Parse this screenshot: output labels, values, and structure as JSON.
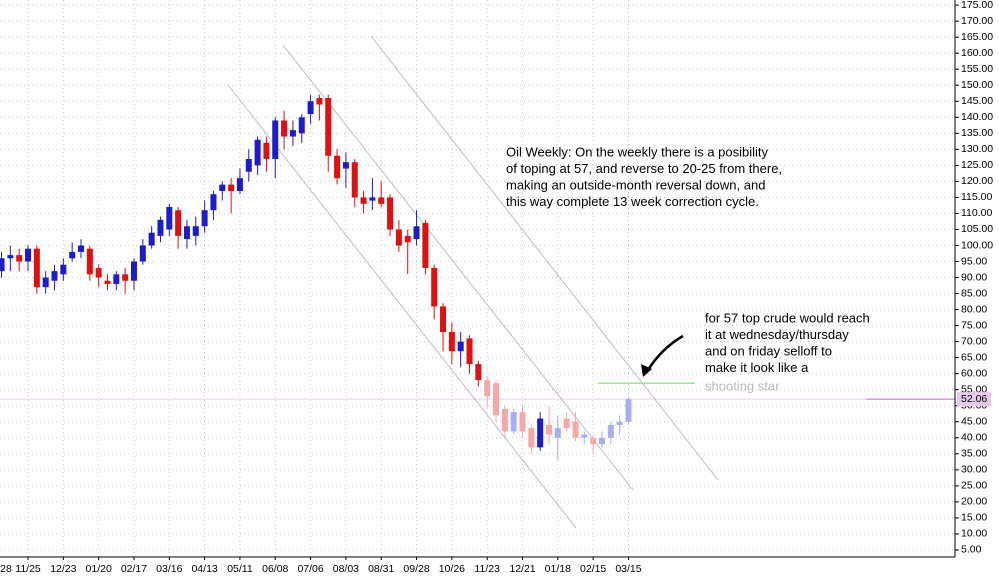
{
  "chart_data": {
    "type": "candlestick",
    "categories": [
      "28",
      null,
      null,
      null,
      "11/25",
      null,
      null,
      null,
      "12/23",
      null,
      null,
      null,
      "01/20",
      null,
      null,
      null,
      "02/17",
      null,
      null,
      null,
      "03/16",
      null,
      null,
      null,
      "04/13",
      null,
      null,
      null,
      "05/11",
      null,
      null,
      null,
      "06/08",
      null,
      null,
      null,
      "07/06",
      null,
      null,
      null,
      "08/03",
      null,
      null,
      null,
      "08/31",
      null,
      null,
      null,
      "09/28",
      null,
      null,
      null,
      "10/26",
      null,
      null,
      null,
      "11/23",
      null,
      null,
      null,
      "12/21",
      null,
      null,
      null,
      "01/18",
      null,
      null,
      null,
      "02/15",
      null,
      null,
      null,
      "03/15"
    ],
    "open": [
      null,
      92,
      96,
      97,
      95,
      99,
      87,
      89,
      91,
      96,
      98,
      99,
      93,
      89,
      88,
      91,
      89,
      95,
      100,
      103,
      105,
      111,
      102,
      103,
      106,
      111,
      117,
      119,
      117,
      123,
      125,
      132,
      127,
      139,
      134,
      135,
      141,
      146,
      146,
      128,
      124,
      126,
      115,
      114,
      115,
      115,
      105,
      103,
      102,
      107,
      93,
      81,
      73,
      67,
      71,
      63,
      58,
      57,
      49,
      42,
      48,
      43,
      37,
      44,
      40,
      46,
      45,
      40,
      40,
      38,
      40,
      44,
      45
    ],
    "high": [
      null,
      98,
      100,
      99,
      100,
      100,
      92,
      94,
      96,
      101,
      102,
      100,
      94,
      91,
      92,
      93,
      96,
      102,
      106,
      109,
      113,
      112,
      108,
      109,
      114,
      117,
      120,
      121,
      124,
      130,
      134,
      134,
      140,
      142,
      139,
      141,
      147,
      147,
      147,
      130,
      129,
      127,
      117,
      121,
      120,
      116,
      108,
      105,
      111,
      108,
      94,
      82,
      76,
      73,
      72,
      64,
      59,
      58,
      50,
      49,
      50,
      44,
      48,
      50,
      47,
      48,
      48,
      42,
      41,
      42,
      45,
      47,
      52.5
    ],
    "low": [
      null,
      90,
      92,
      92,
      92,
      85,
      85,
      86,
      89,
      95,
      96,
      89,
      87,
      86,
      86,
      85,
      86,
      94,
      99,
      101,
      103,
      99,
      99,
      100,
      104,
      108,
      114,
      110,
      116,
      120,
      122,
      123,
      121,
      130,
      131,
      132,
      138,
      139,
      123,
      119,
      118,
      112,
      110,
      111,
      112,
      103,
      98,
      91,
      100,
      91,
      77,
      67,
      63,
      62,
      60,
      56,
      49,
      45,
      40,
      41,
      40,
      35,
      36,
      38,
      33,
      42,
      39,
      38,
      35,
      37,
      38,
      41,
      44
    ],
    "close": [
      null,
      96,
      97,
      95,
      99,
      87,
      90,
      92,
      94,
      98,
      100,
      91,
      90,
      88,
      91,
      89,
      95,
      100,
      104,
      108,
      112,
      103,
      106,
      106,
      111,
      116,
      119,
      117,
      121,
      127,
      133,
      127,
      139,
      134,
      136,
      140,
      145,
      144,
      128,
      121,
      126,
      115,
      113,
      115,
      113,
      105,
      100,
      101,
      106,
      93,
      81,
      73,
      67,
      70,
      63,
      58,
      53,
      47,
      42,
      48,
      42,
      37,
      46,
      41,
      43,
      43,
      40,
      41,
      38,
      40,
      44,
      45,
      52.06
    ],
    "colors": [
      null,
      "#1c1ccc",
      "#1c1ccc",
      "#e01010",
      "#1c1ccc",
      "#e01010",
      "#1c1ccc",
      "#1c1ccc",
      "#1c1ccc",
      "#1c1ccc",
      "#1c1ccc",
      "#e01010",
      "#e01010",
      "#e01010",
      "#1c1ccc",
      "#e01010",
      "#1c1ccc",
      "#1c1ccc",
      "#1c1ccc",
      "#1c1ccc",
      "#1c1ccc",
      "#e01010",
      "#1c1ccc",
      "#1c1ccc",
      "#1c1ccc",
      "#1c1ccc",
      "#1c1ccc",
      "#e01010",
      "#1c1ccc",
      "#1c1ccc",
      "#1c1ccc",
      "#e01010",
      "#1c1ccc",
      "#e01010",
      "#1c1ccc",
      "#1c1ccc",
      "#1c1ccc",
      "#e01010",
      "#e01010",
      "#e01010",
      "#1c1ccc",
      "#e01010",
      "#e01010",
      "#1c1ccc",
      "#e01010",
      "#e01010",
      "#e01010",
      "#e01010",
      "#1c1ccc",
      "#e01010",
      "#e01010",
      "#e01010",
      "#e01010",
      "#1c1ccc",
      "#e01010",
      "#e01010",
      "#f4a8a8",
      "#f4a8a8",
      "#f4a8a8",
      "#a8aef0",
      "#f4a8a8",
      "#f4a8a8",
      "#1c1ccc",
      "#f4a8a8",
      "#a8aef0",
      "#f4a8a8",
      "#f4a8a8",
      "#a8aef0",
      "#f4a8a8",
      "#a8aef0",
      "#a8aef0",
      "#a8aef0",
      "#a8aef0"
    ],
    "ylim": [
      2.8,
      176.6
    ],
    "yticks": [
      {
        "value": 5,
        "label": "5.00"
      },
      {
        "value": 10,
        "label": "10.00"
      },
      {
        "value": 15,
        "label": "15.00"
      },
      {
        "value": 20,
        "label": "20.00"
      },
      {
        "value": 25,
        "label": "25.00"
      },
      {
        "value": 30,
        "label": "30.00"
      },
      {
        "value": 35,
        "label": "35.00"
      },
      {
        "value": 40,
        "label": "40.00"
      },
      {
        "value": 45,
        "label": "45.00"
      },
      {
        "value": 50,
        "label": "50.00"
      },
      {
        "value": 55,
        "label": "55.00"
      },
      {
        "value": 60,
        "label": "60.00"
      },
      {
        "value": 65,
        "label": "65.00"
      },
      {
        "value": 70,
        "label": "70.00"
      },
      {
        "value": 75,
        "label": "75.00"
      },
      {
        "value": 80,
        "label": "80.00"
      },
      {
        "value": 85,
        "label": "85.00"
      },
      {
        "value": 90,
        "label": "90.00"
      },
      {
        "value": 95,
        "label": "95.00"
      },
      {
        "value": 100,
        "label": "100.00"
      },
      {
        "value": 105,
        "label": "105.00"
      },
      {
        "value": 110,
        "label": "110.00"
      },
      {
        "value": 115,
        "label": "115.00"
      },
      {
        "value": 120,
        "label": "120.00"
      },
      {
        "value": 125,
        "label": "125.00"
      },
      {
        "value": 130,
        "label": "130.00"
      },
      {
        "value": 135,
        "label": "135.00"
      },
      {
        "value": 140,
        "label": "140.00"
      },
      {
        "value": 145,
        "label": "145.00"
      },
      {
        "value": 150,
        "label": "150.00"
      },
      {
        "value": 155,
        "label": "155.00"
      },
      {
        "value": 160,
        "label": "160.00"
      },
      {
        "value": 165,
        "label": "165.00"
      },
      {
        "value": 170,
        "label": "170.00"
      },
      {
        "value": 175,
        "label": "175.00"
      }
    ],
    "grid": true,
    "last_price": 52.06,
    "last_price_color": "#cc66cc",
    "target_level": 57,
    "target_color": "#99e699",
    "annotations": [
      {
        "lines": [
          "Oil Weekly: On the weekly there is a posibility",
          "of toping at 57, and reverse to 20-25 from there,",
          "making an outside-month reversal down, and",
          "this way complete 13 week correction cycle."
        ],
        "color": "#000000"
      },
      {
        "lines": [
          "for 57 top crude would reach",
          "it at wednesday/thursday",
          "and on friday selloff to",
          "make it look like a"
        ],
        "color": "#000000"
      },
      {
        "lines": [
          "shooting star"
        ],
        "color": "#bbbbbb"
      }
    ]
  }
}
